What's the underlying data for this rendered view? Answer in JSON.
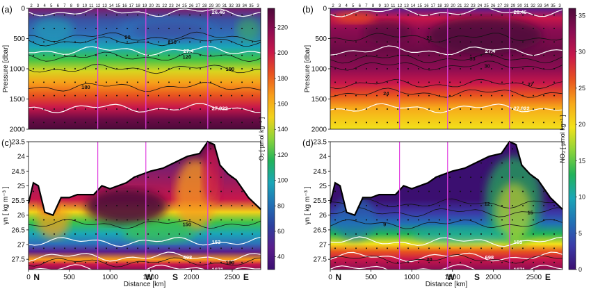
{
  "figure": {
    "shared_xlabel": "Distance [km]",
    "section_labels": [
      {
        "label": "N",
        "distance_km": 100
      },
      {
        "label": "W",
        "distance_km": 1480
      },
      {
        "label": "S",
        "distance_km": 1800
      },
      {
        "label": "E",
        "distance_km": 2670
      }
    ],
    "station_labels": [
      "2",
      "3",
      "4",
      "5",
      "6",
      "7",
      "8",
      "9",
      "10",
      "11",
      "12",
      "13",
      "14",
      "15",
      "16",
      "17",
      "18",
      "19",
      "20",
      "21",
      "22",
      "23",
      "24",
      "25",
      "26",
      "27",
      "28",
      "29",
      "30",
      "31",
      "32",
      "33",
      "34",
      "35",
      "3"
    ],
    "marker_distances_km": [
      850,
      1440,
      2200
    ],
    "colors": {
      "marker_line": "#e040e0",
      "contour_main": "#111111",
      "contour_isopycnal": "#ffffff"
    }
  },
  "chart_data": [
    {
      "panel": "(a)",
      "type": "heatmap",
      "variable": "O2",
      "ylabel": "Pressure [dbar]",
      "xlabel": "",
      "xlim": [
        0,
        2850
      ],
      "ylim": [
        2000,
        0
      ],
      "yticks": [
        0,
        500,
        1000,
        1500,
        2000
      ],
      "colormap": "plasma-like (O2)",
      "contours": [
        {
          "label": "26.46",
          "kind": "isopycnal",
          "value_dbar": 60
        },
        {
          "label": "27.4",
          "kind": "isopycnal",
          "value_dbar": 700
        },
        {
          "label": "27.922",
          "kind": "isopycnal",
          "value_dbar": 1650
        },
        {
          "label": "120",
          "kind": "O2",
          "value_dbar": 800
        },
        {
          "label": "150",
          "kind": "O2",
          "value_dbar": 1000
        },
        {
          "label": "180",
          "kind": "O2",
          "value_dbar": 1300
        },
        {
          "label": "90",
          "kind": "O2",
          "value_dbar": 470
        },
        {
          "label": "210",
          "kind": "O2",
          "value_dbar": 550
        }
      ]
    },
    {
      "panel": "(b)",
      "type": "heatmap",
      "variable": "NO3",
      "ylabel": "Pressure [dbar]",
      "xlabel": "",
      "xlim": [
        0,
        2850
      ],
      "ylim": [
        2000,
        0
      ],
      "yticks": [
        0,
        500,
        1000,
        1500,
        2000
      ],
      "colormap": "thermal-like (NO3)",
      "contours": [
        {
          "label": "26.46",
          "kind": "isopycnal",
          "value_dbar": 60
        },
        {
          "label": "27.4",
          "kind": "isopycnal",
          "value_dbar": 700
        },
        {
          "label": "27.922",
          "kind": "isopycnal",
          "value_dbar": 1650
        },
        {
          "label": "30",
          "kind": "NO3",
          "value_dbar": 950
        },
        {
          "label": "27",
          "kind": "NO3",
          "value_dbar": 1250
        },
        {
          "label": "24",
          "kind": "NO3",
          "value_dbar": 1400
        },
        {
          "label": "21",
          "kind": "NO3",
          "value_dbar": 480
        },
        {
          "label": "33",
          "kind": "NO3",
          "value_dbar": 830
        }
      ]
    },
    {
      "panel": "(c)",
      "type": "heatmap",
      "variable": "O2",
      "ylabel": "γn [ kg m⁻³ ]",
      "xlabel": "Distance [km]",
      "xlim": [
        0,
        2850
      ],
      "xticks": [
        0,
        500,
        1000,
        1500,
        2000,
        2500
      ],
      "ylim": [
        27.85,
        23.5
      ],
      "yticks": [
        23.5,
        24,
        24.5,
        25,
        25.5,
        26,
        26.5,
        27,
        27.5
      ],
      "contours": [
        {
          "label": "153",
          "kind": "pressure",
          "value": 26.9
        },
        {
          "label": "698",
          "kind": "pressure",
          "value": 27.42
        },
        {
          "label": "1671",
          "kind": "pressure",
          "value": 27.84
        },
        {
          "label": "150",
          "kind": "O2",
          "value": 26.3
        },
        {
          "label": "180",
          "kind": "O2",
          "value": 27.6
        }
      ]
    },
    {
      "panel": "(d)",
      "type": "heatmap",
      "variable": "NO3",
      "ylabel": "γn [ kg m⁻³ ]",
      "xlabel": "Distance [km]",
      "xlim": [
        0,
        2850
      ],
      "xticks": [
        0,
        500,
        1000,
        1500,
        2000,
        2500
      ],
      "ylim": [
        27.85,
        23.5
      ],
      "yticks": [
        23.5,
        24,
        24.5,
        25,
        25.5,
        26,
        26.5,
        27,
        27.5
      ],
      "contours": [
        {
          "label": "153",
          "kind": "pressure",
          "value": 26.9
        },
        {
          "label": "698",
          "kind": "pressure",
          "value": 27.42
        },
        {
          "label": "1671",
          "kind": "pressure",
          "value": 27.84
        },
        {
          "label": "12",
          "kind": "NO3",
          "value": 25.6
        },
        {
          "label": "15",
          "kind": "NO3",
          "value": 25.9
        },
        {
          "label": "9",
          "kind": "NO3",
          "value": 26.3
        },
        {
          "label": "30",
          "kind": "NO3",
          "value": 27.5
        }
      ]
    }
  ],
  "colorbars": [
    {
      "name": "O2",
      "label": "O₂ [ µmol kg⁻¹ ]",
      "ticks": [
        40,
        60,
        80,
        100,
        120,
        140,
        160,
        180,
        200,
        220
      ],
      "range": [
        30,
        235
      ],
      "stops": [
        "#3b0f70",
        "#5a1d8c",
        "#2c3f9e",
        "#2171b5",
        "#1aa6b7",
        "#21b35a",
        "#8bd43a",
        "#f2d21a",
        "#f79d1a",
        "#e8531f",
        "#c8174b",
        "#8c0c52",
        "#4d0a3a"
      ]
    },
    {
      "name": "NO3",
      "label": "NO₃ [ µmol kg⁻¹ ]",
      "ticks": [
        0,
        5,
        10,
        15,
        20,
        25,
        30,
        35
      ],
      "range": [
        0,
        36
      ],
      "stops": [
        "#3b0f70",
        "#3b3ba8",
        "#2171b5",
        "#1aa6b7",
        "#21b35a",
        "#8bd43a",
        "#f2e21a",
        "#f7a81a",
        "#e8531f",
        "#c8174b",
        "#8c0c52",
        "#4d0a3a"
      ]
    }
  ]
}
